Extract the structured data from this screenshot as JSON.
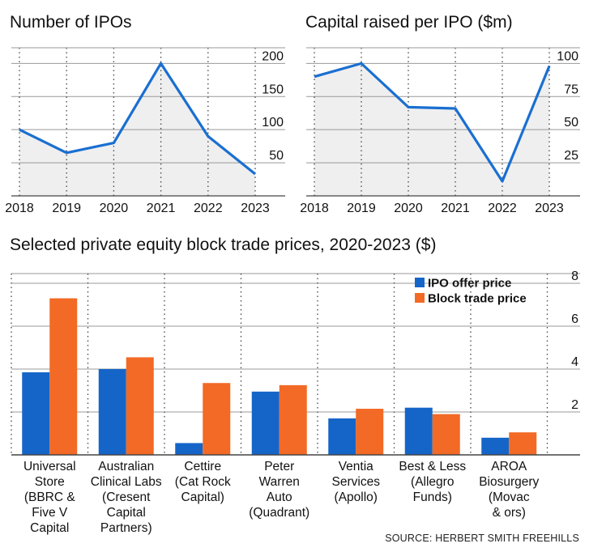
{
  "colors": {
    "line": "#1a6fd1",
    "area": "#efefef",
    "ipo_bar": "#1565c8",
    "block_bar": "#f26a25",
    "grid": "#999999",
    "axis": "#444444"
  },
  "source": "SOURCE: HERBERT SMITH FREEHILLS",
  "chart_data": [
    {
      "type": "line",
      "title": "Number of IPOs",
      "x": [
        "2018",
        "2019",
        "2020",
        "2021",
        "2022",
        "2023"
      ],
      "values": [
        100,
        65,
        80,
        200,
        90,
        33
      ],
      "yticks": [
        "50",
        "100",
        "150",
        "200"
      ],
      "ylim": [
        0,
        220
      ],
      "grid": true,
      "area_fill": true
    },
    {
      "type": "line",
      "title": "Capital raised per IPO ($m)",
      "x": [
        "2018",
        "2019",
        "2020",
        "2021",
        "2022",
        "2023"
      ],
      "values": [
        90,
        100,
        67,
        66,
        11,
        98
      ],
      "yticks": [
        "25",
        "50",
        "75",
        "100"
      ],
      "ylim": [
        0,
        110
      ],
      "grid": true,
      "area_fill": true
    },
    {
      "type": "bar",
      "title": "Selected private equity block trade prices, 2020-2023 ($)",
      "categories": [
        [
          "Universal",
          "Store",
          "(BBRC &",
          "Five V",
          "Capital"
        ],
        [
          "Australian",
          "Clinical Labs",
          "(Cresent",
          "Capital",
          "Partners)"
        ],
        [
          "Cettire",
          "(Cat Rock",
          "Capital)"
        ],
        [
          "Peter",
          "Warren",
          "Auto",
          "(Quadrant)"
        ],
        [
          "Ventia",
          "Services",
          "(Apollo)"
        ],
        [
          "Best & Less",
          "(Allegro",
          "Funds)"
        ],
        [
          "AROA",
          "Biosurgery",
          "(Movac",
          "& ors)"
        ]
      ],
      "series": [
        {
          "name": "IPO offer price",
          "values": [
            3.85,
            4.0,
            0.55,
            2.95,
            1.7,
            2.2,
            0.8
          ]
        },
        {
          "name": "Block trade price",
          "values": [
            7.3,
            4.55,
            3.35,
            3.25,
            2.15,
            1.9,
            1.05
          ]
        }
      ],
      "yticks": [
        "2",
        "4",
        "6",
        "8"
      ],
      "ylim": [
        0,
        8
      ],
      "legend_position": "top-right",
      "grid": true
    }
  ]
}
